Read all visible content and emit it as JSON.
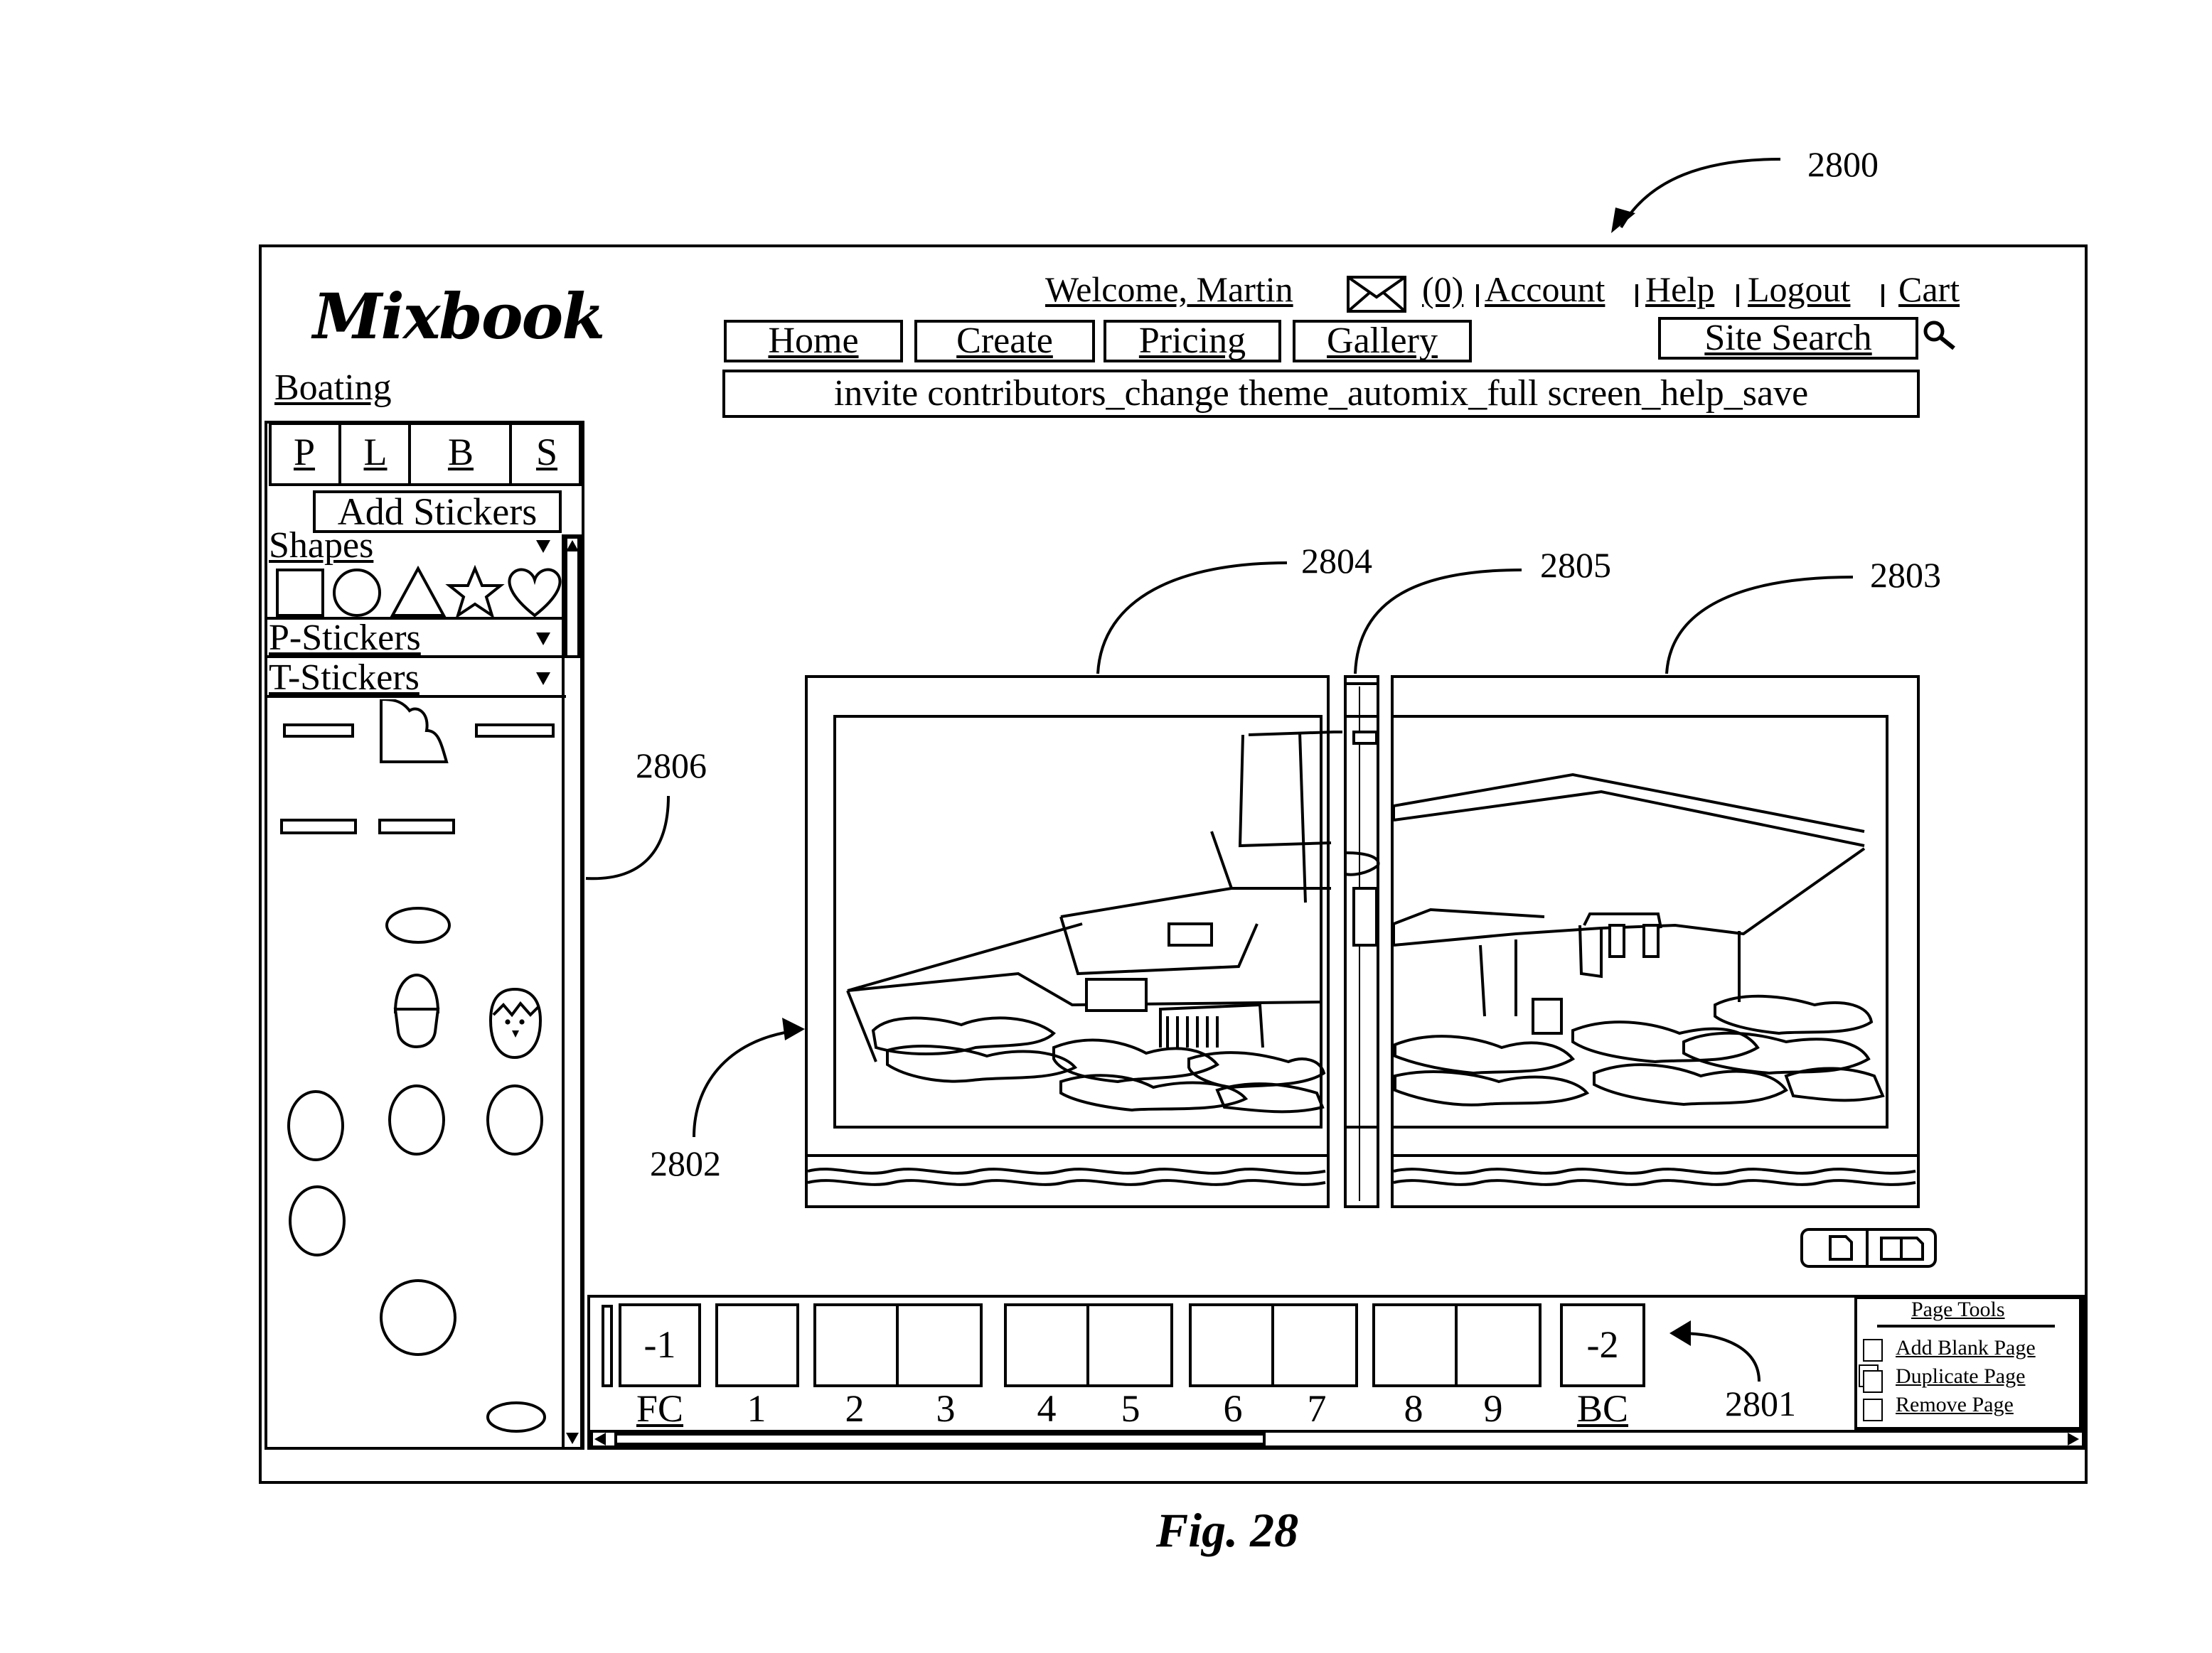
{
  "figure": {
    "caption": "Fig. 28",
    "ref_main": "2800",
    "ref_thumbnail_bar": "2801",
    "ref_left_page": "2802",
    "ref_right_page": "2803",
    "ref_spread": "2804",
    "ref_spine": "2805",
    "ref_sticker_panel": "2806"
  },
  "app": {
    "logo": "Mixbook",
    "project_name": "Boating"
  },
  "header": {
    "welcome": "Welcome, Martin",
    "message_count": "(0)",
    "links": [
      "Account",
      "Help",
      "Logout",
      "Cart"
    ]
  },
  "nav": {
    "buttons": [
      "Home",
      "Create",
      "Pricing",
      "Gallery"
    ],
    "search_label": "Site Search"
  },
  "toolbar": {
    "text": "invite contributors_change theme_automix_full screen_help_save"
  },
  "panel": {
    "tabs": [
      "P",
      "L",
      "B",
      "S"
    ],
    "add_button": "Add Stickers",
    "categories": [
      "Shapes",
      "P-Stickers",
      "T-Stickers"
    ]
  },
  "pages": {
    "front_cover": {
      "thumb": "-1",
      "label": "FC"
    },
    "back_cover": {
      "thumb": "-2",
      "label": "BC"
    },
    "numbers": [
      "1",
      "2",
      "3",
      "4",
      "5",
      "6",
      "7",
      "8",
      "9"
    ]
  },
  "page_tools": {
    "title": "Page Tools",
    "items": [
      "Add Blank Page",
      "Duplicate Page",
      "Remove Page"
    ]
  },
  "icons": {
    "envelope": "envelope-icon",
    "search": "magnifier-icon",
    "view_single": "single-page-icon",
    "view_spread": "two-page-spread-icon"
  }
}
